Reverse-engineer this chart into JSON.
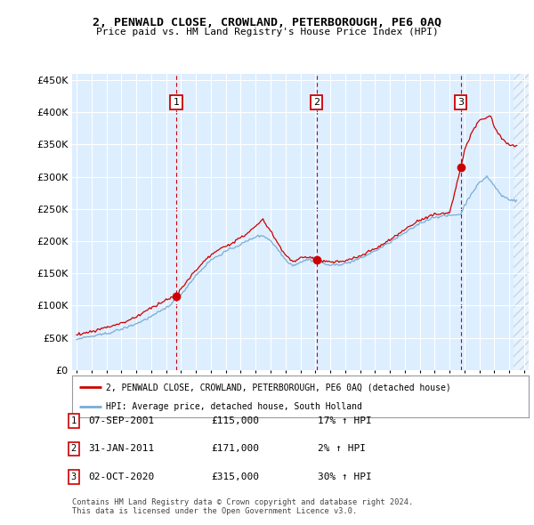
{
  "title": "2, PENWALD CLOSE, CROWLAND, PETERBOROUGH, PE6 0AQ",
  "subtitle": "Price paid vs. HM Land Registry's House Price Index (HPI)",
  "ylim": [
    0,
    460000
  ],
  "yticks": [
    0,
    50000,
    100000,
    150000,
    200000,
    250000,
    300000,
    350000,
    400000,
    450000
  ],
  "background_color": "#ddeeff",
  "plot_bg": "#ddeeff",
  "red_color": "#cc0000",
  "blue_color": "#7aadd4",
  "vline_color": "#cc0000",
  "grid_color": "#ffffff",
  "hatch_color": "#bbccdd",
  "transactions": [
    {
      "num": 1,
      "date": "07-SEP-2001",
      "price": 115000,
      "pct": "17%",
      "dir": "↑",
      "year_x": 2001.68
    },
    {
      "num": 2,
      "date": "31-JAN-2011",
      "price": 171000,
      "pct": "2%",
      "dir": "↑",
      "year_x": 2011.08
    },
    {
      "num": 3,
      "date": "02-OCT-2020",
      "price": 315000,
      "pct": "30%",
      "dir": "↑",
      "year_x": 2020.75
    }
  ],
  "legend_label_red": "2, PENWALD CLOSE, CROWLAND, PETERBOROUGH, PE6 0AQ (detached house)",
  "legend_label_blue": "HPI: Average price, detached house, South Holland",
  "footer": "Contains HM Land Registry data © Crown copyright and database right 2024.\nThis data is licensed under the Open Government Licence v3.0.",
  "xlim_left": 1994.7,
  "xlim_right": 2025.3
}
